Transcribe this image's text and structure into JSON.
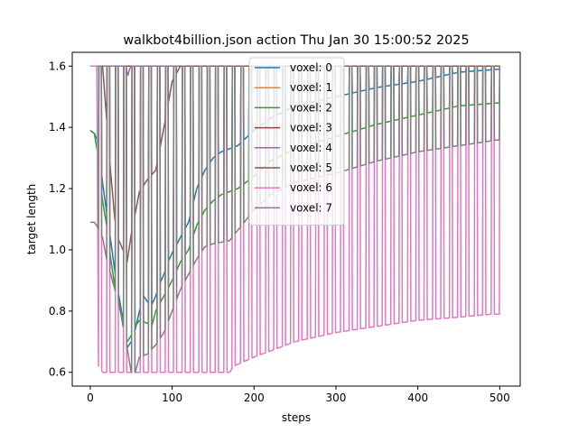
{
  "chart_data": {
    "type": "line",
    "title": "walkbot4billion.json action Thu Jan 30 15:00:52 2025",
    "xlabel": "steps",
    "ylabel": "target length",
    "xlim": [
      -22,
      525
    ],
    "ylim": [
      0.555,
      1.645
    ],
    "xticks": [
      0,
      100,
      200,
      300,
      400,
      500
    ],
    "xtick_labels": [
      "0",
      "100",
      "200",
      "300",
      "400",
      "500"
    ],
    "yticks": [
      0.6,
      0.8,
      1.0,
      1.2,
      1.4,
      1.6
    ],
    "ytick_labels": [
      "0.6",
      "0.8",
      "1.0",
      "1.2",
      "1.4",
      "1.6"
    ],
    "legend_position": "upper center",
    "grid": false,
    "x_range": [
      0,
      500
    ],
    "period_steps": 10.2,
    "series": [
      {
        "name": "voxel: 0",
        "color": "#1f77b4",
        "low_envelope": [
          [
            0,
            1.39
          ],
          [
            5,
            1.38
          ],
          [
            10,
            1.35
          ],
          [
            15,
            1.22
          ],
          [
            20,
            1.12
          ],
          [
            25,
            1.03
          ],
          [
            30,
            0.93
          ],
          [
            35,
            0.85
          ],
          [
            40,
            0.77
          ],
          [
            45,
            0.68
          ],
          [
            50,
            0.7
          ],
          [
            55,
            0.74
          ],
          [
            60,
            0.8
          ],
          [
            65,
            0.85
          ],
          [
            70,
            0.83
          ],
          [
            75,
            0.82
          ],
          [
            80,
            0.85
          ],
          [
            85,
            0.89
          ],
          [
            90,
            0.92
          ],
          [
            95,
            0.96
          ],
          [
            100,
            0.99
          ],
          [
            110,
            1.04
          ],
          [
            120,
            1.09
          ],
          [
            130,
            1.2
          ],
          [
            140,
            1.26
          ],
          [
            150,
            1.3
          ],
          [
            160,
            1.32
          ],
          [
            180,
            1.34
          ],
          [
            200,
            1.39
          ],
          [
            220,
            1.43
          ],
          [
            250,
            1.47
          ],
          [
            300,
            1.5
          ],
          [
            350,
            1.53
          ],
          [
            400,
            1.55
          ],
          [
            450,
            1.58
          ],
          [
            500,
            1.59
          ]
        ]
      },
      {
        "name": "voxel: 1",
        "color": "#ff7f0e",
        "low_envelope": [
          [
            0,
            1.6
          ],
          [
            500,
            1.6
          ]
        ]
      },
      {
        "name": "voxel: 2",
        "color": "#2ca02c",
        "low_envelope": [
          [
            0,
            1.39
          ],
          [
            5,
            1.38
          ],
          [
            10,
            1.3
          ],
          [
            15,
            1.16
          ],
          [
            20,
            1.08
          ],
          [
            25,
            0.97
          ],
          [
            30,
            0.88
          ],
          [
            35,
            0.83
          ],
          [
            40,
            0.75
          ],
          [
            45,
            0.7
          ],
          [
            50,
            0.72
          ],
          [
            55,
            0.75
          ],
          [
            60,
            0.77
          ],
          [
            70,
            0.76
          ],
          [
            75,
            0.75
          ],
          [
            80,
            0.8
          ],
          [
            90,
            0.85
          ],
          [
            100,
            0.9
          ],
          [
            110,
            0.96
          ],
          [
            120,
            1.0
          ],
          [
            130,
            1.08
          ],
          [
            140,
            1.13
          ],
          [
            150,
            1.16
          ],
          [
            160,
            1.18
          ],
          [
            180,
            1.2
          ],
          [
            200,
            1.24
          ],
          [
            220,
            1.29
          ],
          [
            250,
            1.33
          ],
          [
            300,
            1.37
          ],
          [
            350,
            1.41
          ],
          [
            400,
            1.44
          ],
          [
            450,
            1.47
          ],
          [
            500,
            1.48
          ]
        ]
      },
      {
        "name": "voxel: 3",
        "color": "#d62728",
        "low_envelope": [
          [
            0,
            1.6
          ],
          [
            500,
            1.6
          ]
        ]
      },
      {
        "name": "voxel: 4",
        "color": "#9467bd",
        "low_envelope": [
          [
            0,
            1.6
          ],
          [
            40,
            1.6
          ],
          [
            44,
            1.59
          ],
          [
            46,
            1.57
          ],
          [
            48,
            1.59
          ],
          [
            50,
            1.6
          ],
          [
            500,
            1.6
          ]
        ]
      },
      {
        "name": "voxel: 5",
        "color": "#8c564b",
        "low_envelope": [
          [
            0,
            1.6
          ],
          [
            15,
            1.6
          ],
          [
            25,
            1.25
          ],
          [
            30,
            1.1
          ],
          [
            35,
            1.03
          ],
          [
            40,
            1.0
          ],
          [
            45,
            0.96
          ],
          [
            50,
            1.05
          ],
          [
            55,
            1.12
          ],
          [
            60,
            1.19
          ],
          [
            70,
            1.23
          ],
          [
            80,
            1.26
          ],
          [
            90,
            1.4
          ],
          [
            100,
            1.55
          ],
          [
            110,
            1.6
          ],
          [
            500,
            1.6
          ]
        ]
      },
      {
        "name": "voxel: 6",
        "color": "#e377c2",
        "low_envelope": [
          [
            0,
            1.6
          ],
          [
            8,
            1.6
          ],
          [
            10,
            0.62
          ],
          [
            15,
            0.6
          ],
          [
            100,
            0.6
          ],
          [
            170,
            0.6
          ],
          [
            175,
            0.62
          ],
          [
            200,
            0.65
          ],
          [
            250,
            0.7
          ],
          [
            300,
            0.73
          ],
          [
            350,
            0.75
          ],
          [
            400,
            0.77
          ],
          [
            450,
            0.78
          ],
          [
            490,
            0.79
          ],
          [
            500,
            0.79
          ]
        ]
      },
      {
        "name": "voxel: 7",
        "color": "#7f7f7f",
        "low_envelope": [
          [
            0,
            1.09
          ],
          [
            5,
            1.09
          ],
          [
            10,
            1.07
          ],
          [
            15,
            1.04
          ],
          [
            20,
            0.97
          ],
          [
            25,
            0.92
          ],
          [
            30,
            0.87
          ],
          [
            35,
            0.82
          ],
          [
            40,
            0.76
          ],
          [
            45,
            0.68
          ],
          [
            50,
            0.6
          ],
          [
            55,
            0.6
          ],
          [
            60,
            0.65
          ],
          [
            70,
            0.66
          ],
          [
            80,
            0.69
          ],
          [
            90,
            0.73
          ],
          [
            100,
            0.8
          ],
          [
            110,
            0.87
          ],
          [
            120,
            0.92
          ],
          [
            130,
            0.97
          ],
          [
            140,
            1.01
          ],
          [
            150,
            1.02
          ],
          [
            170,
            1.03
          ],
          [
            200,
            1.13
          ],
          [
            220,
            1.18
          ],
          [
            250,
            1.22
          ],
          [
            300,
            1.25
          ],
          [
            350,
            1.29
          ],
          [
            400,
            1.32
          ],
          [
            450,
            1.34
          ],
          [
            500,
            1.36
          ]
        ]
      }
    ]
  }
}
